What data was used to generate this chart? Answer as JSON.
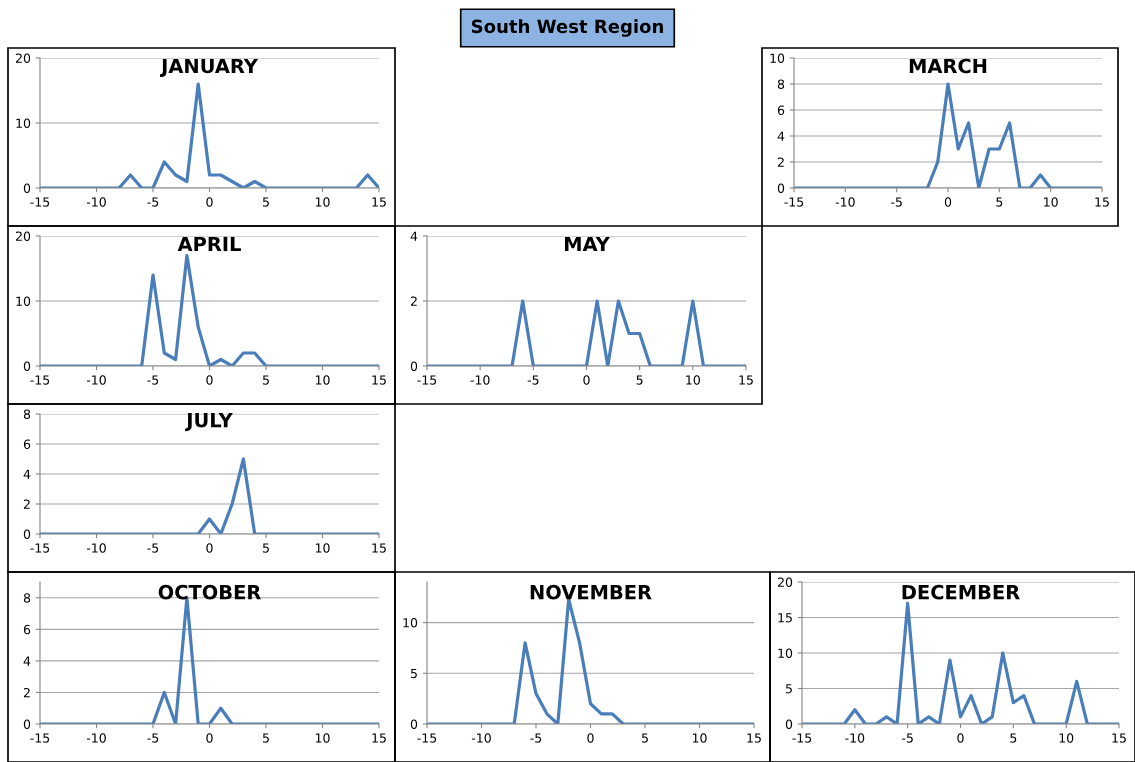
{
  "chart_data": [
    {
      "type": "line",
      "title": "JANUARY",
      "annotations": [
        "South West Region"
      ],
      "x": [
        -15,
        -14,
        -13,
        -12,
        -11,
        -10,
        -9,
        -8,
        -7,
        -6,
        -5,
        -4,
        -3,
        -2,
        -1,
        0,
        1,
        2,
        3,
        4,
        5,
        6,
        7,
        8,
        9,
        10,
        11,
        12,
        13,
        14,
        15
      ],
      "series": [
        {
          "color": "#4a7ebb",
          "values": [
            0,
            0,
            0,
            0,
            0,
            0,
            0,
            0,
            2,
            0,
            0,
            4,
            2,
            1,
            16,
            2,
            2,
            1,
            0,
            1,
            0,
            0,
            0,
            0,
            0,
            0,
            0,
            0,
            0,
            2,
            0
          ]
        }
      ],
      "xlim": [
        -15,
        15
      ],
      "xticks": [
        -15,
        -10,
        -5,
        0,
        5,
        10,
        15
      ],
      "ylim": [
        0,
        20
      ],
      "yticks": [
        0,
        10,
        20
      ],
      "grid": "y",
      "legend": false,
      "marker": "none",
      "line_style": "solid"
    },
    {
      "type": "line",
      "title": "MARCH",
      "x": [
        -15,
        -14,
        -13,
        -12,
        -11,
        -10,
        -9,
        -8,
        -7,
        -6,
        -5,
        -4,
        -3,
        -2,
        -1,
        0,
        1,
        2,
        3,
        4,
        5,
        6,
        7,
        8,
        9,
        10,
        11,
        12,
        13,
        14,
        15
      ],
      "series": [
        {
          "color": "#4a7ebb",
          "values": [
            0,
            0,
            0,
            0,
            0,
            0,
            0,
            0,
            0,
            0,
            0,
            0,
            0,
            0,
            2,
            8,
            3,
            5,
            0,
            3,
            3,
            5,
            0,
            0,
            1,
            0,
            0,
            0,
            0,
            0,
            0
          ]
        }
      ],
      "xlim": [
        -15,
        15
      ],
      "xticks": [
        -15,
        -10,
        -5,
        0,
        5,
        10,
        15
      ],
      "ylim": [
        0,
        10
      ],
      "yticks": [
        0,
        2,
        4,
        6,
        8,
        10
      ],
      "grid": "y",
      "legend": false,
      "marker": "none",
      "line_style": "solid"
    },
    {
      "type": "line",
      "title": "APRIL",
      "x": [
        -15,
        -14,
        -13,
        -12,
        -11,
        -10,
        -9,
        -8,
        -7,
        -6,
        -5,
        -4,
        -3,
        -2,
        -1,
        0,
        1,
        2,
        3,
        4,
        5,
        6,
        7,
        8,
        9,
        10,
        11,
        12,
        13,
        14,
        15
      ],
      "series": [
        {
          "color": "#4a7ebb",
          "values": [
            0,
            0,
            0,
            0,
            0,
            0,
            0,
            0,
            0,
            0,
            14,
            2,
            1,
            17,
            6,
            0,
            1,
            0,
            2,
            2,
            0,
            0,
            0,
            0,
            0,
            0,
            0,
            0,
            0,
            0,
            0
          ]
        }
      ],
      "xlim": [
        -15,
        15
      ],
      "xticks": [
        -15,
        -10,
        -5,
        0,
        5,
        10,
        15
      ],
      "ylim": [
        0,
        20
      ],
      "yticks": [
        0,
        10,
        20
      ],
      "grid": "y",
      "legend": false,
      "marker": "none",
      "line_style": "solid"
    },
    {
      "type": "line",
      "title": "MAY",
      "x": [
        -15,
        -14,
        -13,
        -12,
        -11,
        -10,
        -9,
        -8,
        -7,
        -6,
        -5,
        -4,
        -3,
        -2,
        -1,
        0,
        1,
        2,
        3,
        4,
        5,
        6,
        7,
        8,
        9,
        10,
        11,
        12,
        13,
        14,
        15
      ],
      "series": [
        {
          "color": "#4a7ebb",
          "values": [
            0,
            0,
            0,
            0,
            0,
            0,
            0,
            0,
            0,
            2,
            0,
            0,
            0,
            0,
            0,
            0,
            2,
            0,
            2,
            1,
            1,
            0,
            0,
            0,
            0,
            2,
            0,
            0,
            0,
            0,
            0
          ]
        }
      ],
      "xlim": [
        -15,
        15
      ],
      "xticks": [
        -15,
        -10,
        -5,
        0,
        5,
        10,
        15
      ],
      "ylim": [
        0,
        4
      ],
      "yticks": [
        0,
        2,
        4
      ],
      "grid": "y",
      "legend": false,
      "marker": "none",
      "line_style": "solid"
    },
    {
      "type": "line",
      "title": "JULY",
      "x": [
        -15,
        -14,
        -13,
        -12,
        -11,
        -10,
        -9,
        -8,
        -7,
        -6,
        -5,
        -4,
        -3,
        -2,
        -1,
        0,
        1,
        2,
        3,
        4,
        5,
        6,
        7,
        8,
        9,
        10,
        11,
        12,
        13,
        14,
        15
      ],
      "series": [
        {
          "color": "#4a7ebb",
          "values": [
            0,
            0,
            0,
            0,
            0,
            0,
            0,
            0,
            0,
            0,
            0,
            0,
            0,
            0,
            0,
            1,
            0,
            2,
            5,
            0,
            0,
            0,
            0,
            0,
            0,
            0,
            0,
            0,
            0,
            0,
            0
          ]
        }
      ],
      "xlim": [
        -15,
        15
      ],
      "xticks": [
        -15,
        -10,
        -5,
        0,
        5,
        10,
        15
      ],
      "ylim": [
        0,
        8
      ],
      "yticks": [
        0,
        2,
        4,
        6,
        8
      ],
      "grid": "y",
      "legend": false,
      "marker": "none",
      "line_style": "solid"
    },
    {
      "type": "line",
      "title": "OCTOBER",
      "x": [
        -15,
        -14,
        -13,
        -12,
        -11,
        -10,
        -9,
        -8,
        -7,
        -6,
        -5,
        -4,
        -3,
        -2,
        -1,
        0,
        1,
        2,
        3,
        4,
        5,
        6,
        7,
        8,
        9,
        10,
        11,
        12,
        13,
        14,
        15
      ],
      "series": [
        {
          "color": "#4a7ebb",
          "values": [
            0,
            0,
            0,
            0,
            0,
            0,
            0,
            0,
            0,
            0,
            0,
            2,
            0,
            8,
            0,
            0,
            1,
            0,
            0,
            0,
            0,
            0,
            0,
            0,
            0,
            0,
            0,
            0,
            0,
            0,
            0
          ]
        }
      ],
      "xlim": [
        -15,
        15
      ],
      "xticks": [
        -15,
        -10,
        -5,
        0,
        5,
        10,
        15
      ],
      "ylim": [
        0,
        9
      ],
      "yticks": [
        0,
        2,
        4,
        6,
        8
      ],
      "grid": "y",
      "legend": false,
      "marker": "none",
      "line_style": "solid"
    },
    {
      "type": "line",
      "title": "NOVEMBER",
      "x": [
        -15,
        -14,
        -13,
        -12,
        -11,
        -10,
        -9,
        -8,
        -7,
        -6,
        -5,
        -4,
        -3,
        -2,
        -1,
        0,
        1,
        2,
        3,
        4,
        5,
        6,
        7,
        8,
        9,
        10,
        11,
        12,
        13,
        14,
        15
      ],
      "series": [
        {
          "color": "#4a7ebb",
          "values": [
            0,
            0,
            0,
            0,
            0,
            0,
            0,
            0,
            0,
            8,
            3,
            1,
            0,
            12.3,
            8,
            2,
            1,
            1,
            0,
            0,
            0,
            0,
            0,
            0,
            0,
            0,
            0,
            0,
            0,
            0,
            0
          ]
        }
      ],
      "xlim": [
        -15,
        15
      ],
      "xticks": [
        -15,
        -10,
        -5,
        0,
        5,
        10,
        15
      ],
      "ylim": [
        0,
        14
      ],
      "yticks": [
        0,
        5,
        10
      ],
      "grid": "y",
      "legend": false,
      "marker": "none",
      "line_style": "solid"
    },
    {
      "type": "line",
      "title": "DECEMBER",
      "x": [
        -15,
        -14,
        -13,
        -12,
        -11,
        -10,
        -9,
        -8,
        -7,
        -6,
        -5,
        -4,
        -3,
        -2,
        -1,
        0,
        1,
        2,
        3,
        4,
        5,
        6,
        7,
        8,
        9,
        10,
        11,
        12,
        13,
        14,
        15
      ],
      "series": [
        {
          "color": "#4a7ebb",
          "values": [
            0,
            0,
            0,
            0,
            0,
            2,
            0,
            0,
            1,
            0,
            17,
            0,
            1,
            0,
            9,
            1,
            4,
            0,
            1,
            10,
            3,
            4,
            0,
            0,
            0,
            0,
            6,
            0,
            0,
            0,
            0
          ]
        }
      ],
      "xlim": [
        -15,
        15
      ],
      "xticks": [
        -15,
        -10,
        -5,
        0,
        5,
        10,
        15
      ],
      "ylim": [
        0,
        20
      ],
      "yticks": [
        0,
        5,
        10,
        15,
        20
      ],
      "grid": "y",
      "legend": false,
      "marker": "none",
      "line_style": "solid"
    }
  ]
}
